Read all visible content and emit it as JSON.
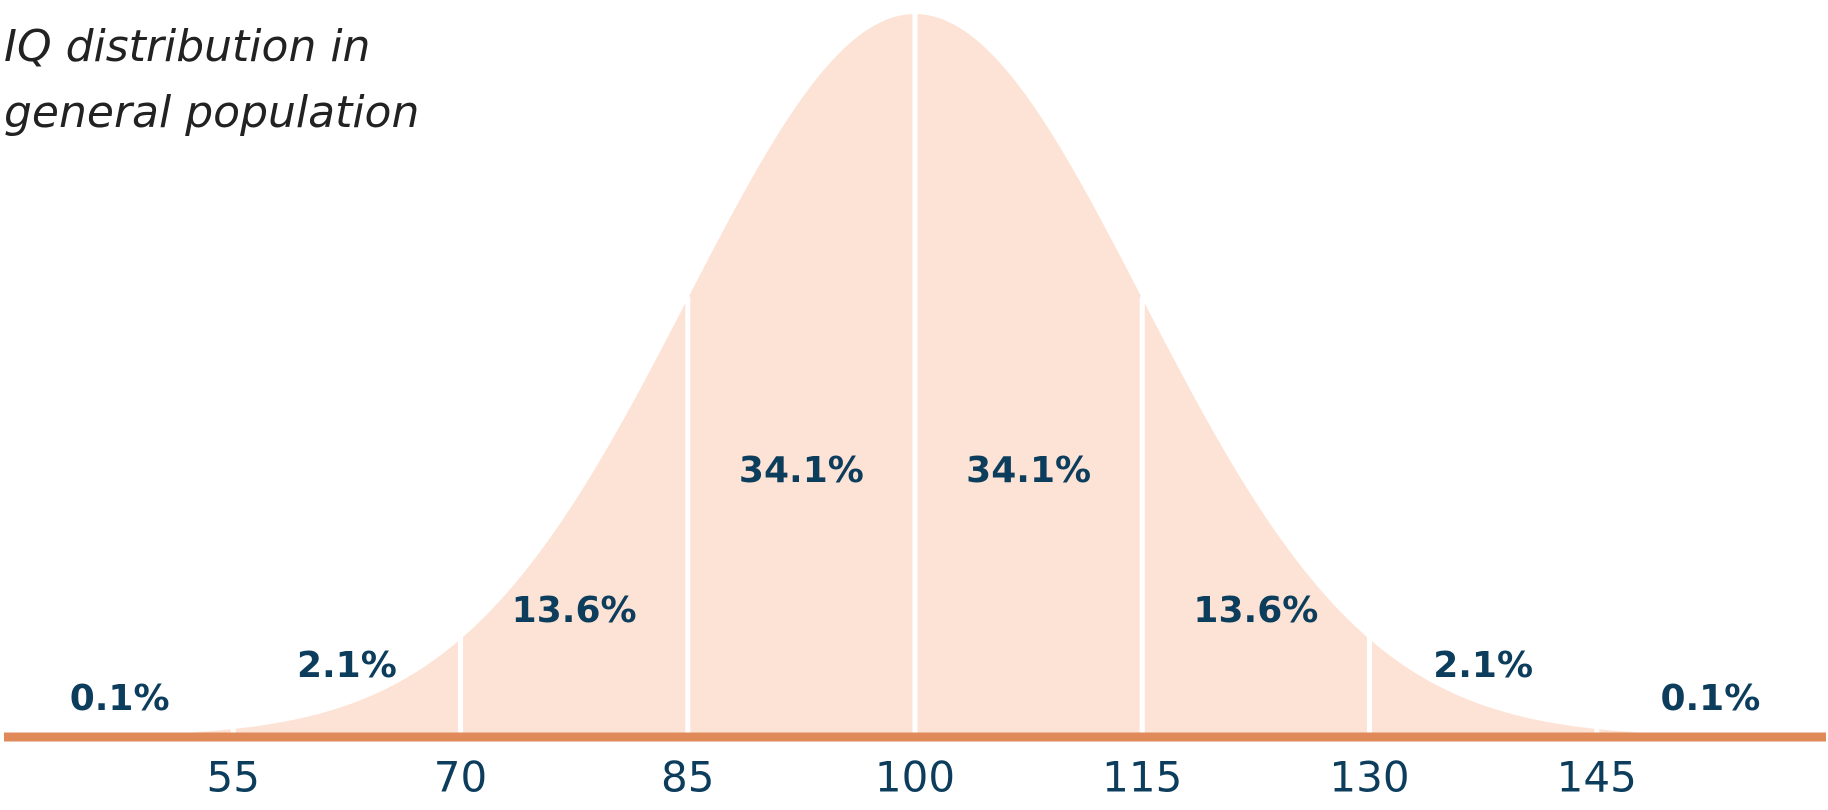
{
  "chart_data": {
    "type": "area",
    "title": "IQ distribution in general population",
    "values": [
      0.1,
      2.1,
      13.6,
      34.1,
      34.1,
      13.6,
      2.1,
      0.1
    ],
    "value_labels": [
      "0.1%",
      "2.1%",
      "13.6%",
      "34.1%",
      "34.1%",
      "13.6%",
      "2.1%",
      "0.1%"
    ],
    "xlim": [
      40,
      160
    ],
    "xticks": [
      55,
      70,
      85,
      100,
      115,
      130,
      145
    ],
    "color": "#fde3d5",
    "axis_color": "#e08a5a",
    "label_color": "#0d3d5c"
  }
}
